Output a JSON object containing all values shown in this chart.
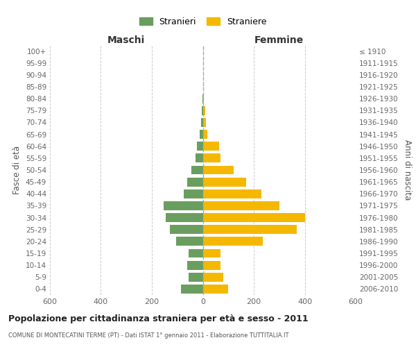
{
  "age_groups": [
    "0-4",
    "5-9",
    "10-14",
    "15-19",
    "20-24",
    "25-29",
    "30-34",
    "35-39",
    "40-44",
    "45-49",
    "50-54",
    "55-59",
    "60-64",
    "65-69",
    "70-74",
    "75-79",
    "80-84",
    "85-89",
    "90-94",
    "95-99",
    "100+"
  ],
  "birth_years": [
    "2006-2010",
    "2001-2005",
    "1996-2000",
    "1991-1995",
    "1986-1990",
    "1981-1985",
    "1976-1980",
    "1971-1975",
    "1966-1970",
    "1961-1965",
    "1956-1960",
    "1951-1955",
    "1946-1950",
    "1941-1945",
    "1936-1940",
    "1931-1935",
    "1926-1930",
    "1921-1925",
    "1916-1920",
    "1911-1915",
    "≤ 1910"
  ],
  "maschi": [
    85,
    55,
    60,
    55,
    105,
    130,
    145,
    155,
    75,
    60,
    45,
    28,
    22,
    12,
    8,
    5,
    2,
    0,
    0,
    0,
    0
  ],
  "femmine": [
    100,
    80,
    70,
    70,
    235,
    370,
    400,
    300,
    230,
    170,
    120,
    70,
    65,
    18,
    12,
    10,
    5,
    2,
    0,
    0,
    0
  ],
  "male_color": "#6a9e5f",
  "female_color": "#f5b800",
  "title": "Popolazione per cittadinanza straniera per età e sesso - 2011",
  "subtitle": "COMUNE DI MONTECATINI TERME (PT) - Dati ISTAT 1° gennaio 2011 - Elaborazione TUTTITALIA.IT",
  "xlabel_left": "Maschi",
  "xlabel_right": "Femmine",
  "ylabel_left": "Fasce di età",
  "ylabel_right": "Anni di nascita",
  "legend_male": "Stranieri",
  "legend_female": "Straniere",
  "xlim": 600,
  "bg_color": "#ffffff",
  "grid_color": "#cccccc"
}
